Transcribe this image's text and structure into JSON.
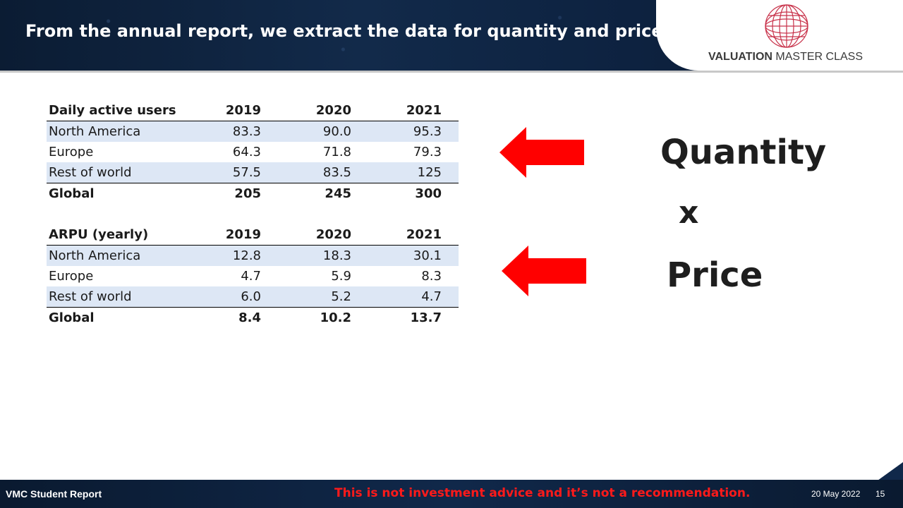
{
  "header": {
    "title": "From the annual report, we extract the data for quantity and price"
  },
  "logo": {
    "text_bold": "VALUATION",
    "text_rest": " MASTER CLASS",
    "icon": "globe-icon",
    "color": "#c8324a"
  },
  "users_table": {
    "columns": [
      "Daily active users",
      "2019",
      "2020",
      "2021"
    ],
    "rows": [
      {
        "label": "North America",
        "values": [
          "83.3",
          "90.0",
          "95.3"
        ]
      },
      {
        "label": "Europe",
        "values": [
          "64.3",
          "71.8",
          "79.3"
        ]
      },
      {
        "label": "Rest of world",
        "values": [
          "57.5",
          "83.5",
          "125"
        ]
      }
    ],
    "total": {
      "label": "Global",
      "values": [
        "205",
        "245",
        "300"
      ]
    }
  },
  "arpu_table": {
    "columns": [
      "ARPU (yearly)",
      "2019",
      "2020",
      "2021"
    ],
    "rows": [
      {
        "label": "North America",
        "values": [
          "12.8",
          "18.3",
          "30.1"
        ]
      },
      {
        "label": "Europe",
        "values": [
          "4.7",
          "5.9",
          "8.3"
        ]
      },
      {
        "label": "Rest of world",
        "values": [
          "6.0",
          "5.2",
          "4.7"
        ]
      }
    ],
    "total": {
      "label": "Global",
      "values": [
        "8.4",
        "10.2",
        "13.7"
      ]
    }
  },
  "annotation": {
    "quantity": "Quantity",
    "times": "x",
    "price": "Price",
    "arrow_color": "#ff0000"
  },
  "footer": {
    "left": "VMC Student Report",
    "note": "This is not investment advice and it’s not a recommendation.",
    "date": "20 May 2022",
    "page": "15"
  }
}
